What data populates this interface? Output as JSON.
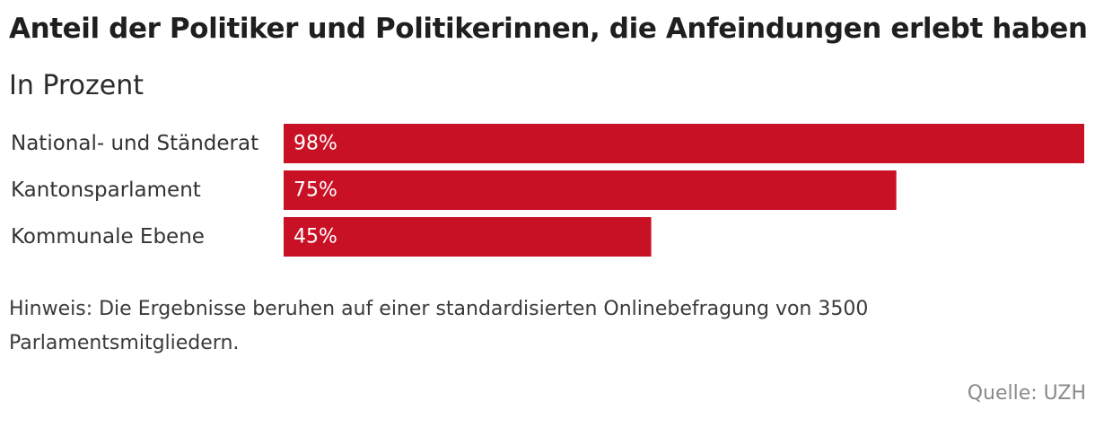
{
  "header": {
    "title": "Anteil der Politiker und Politikerinnen, die Anfeindungen erlebt haben",
    "subtitle": "In Prozent"
  },
  "colors": {
    "bar": "#c91126",
    "bar_label": "#ffffff"
  },
  "chart_data": {
    "type": "bar",
    "orientation": "horizontal",
    "title": "Anteil der Politiker und Politikerinnen, die Anfeindungen erlebt haben",
    "subtitle": "In Prozent",
    "categories": [
      "National- und Ständerat",
      "Kantonsparlament",
      "Kommunale Ebene"
    ],
    "values": [
      98,
      75,
      45
    ],
    "value_labels": [
      "98%",
      "75%",
      "45%"
    ],
    "xlim": [
      0,
      98
    ],
    "xlabel": "",
    "ylabel": "",
    "grid": false
  },
  "footer": {
    "note": "Hinweis: Die Ergebnisse beruhen auf einer standardisierten Onlinebefragung von 3500 Parlamentsmitgliedern.",
    "source": "Quelle: UZH"
  }
}
